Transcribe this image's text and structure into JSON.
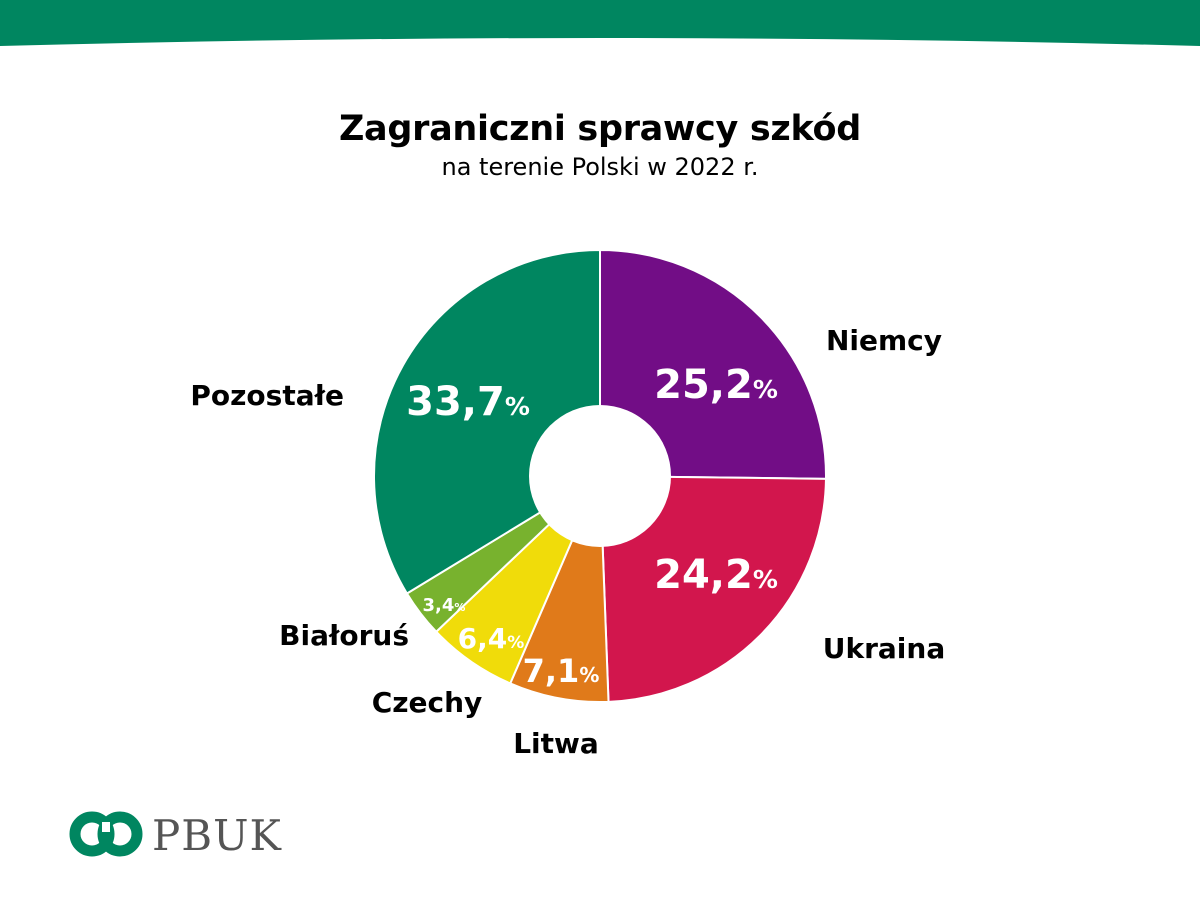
{
  "colors": {
    "brand": "#008660",
    "logo_text": "#555555"
  },
  "chart_data": {
    "type": "pie",
    "style": "donut",
    "title": "Zagraniczni sprawcy szkód",
    "subtitle": "na terenie Polski w 2022 r.",
    "unit": "%",
    "slices": [
      {
        "label": "Niemcy",
        "value": 25.2,
        "display": "25,2",
        "color": "#720d86"
      },
      {
        "label": "Ukraina",
        "value": 24.2,
        "display": "24,2",
        "color": "#d2164d"
      },
      {
        "label": "Litwa",
        "value": 7.1,
        "display": "7,1",
        "color": "#e07a1a"
      },
      {
        "label": "Czechy",
        "value": 6.4,
        "display": "6,4",
        "color": "#f0dc0a"
      },
      {
        "label": "Białoruś",
        "value": 3.4,
        "display": "3,4",
        "color": "#78b22e"
      },
      {
        "label": "Pozostałe",
        "value": 33.7,
        "display": "33,7",
        "color": "#008660"
      }
    ]
  },
  "logo": {
    "text": "PBUK",
    "icon": "pbuk-interlocked-rings-icon"
  }
}
